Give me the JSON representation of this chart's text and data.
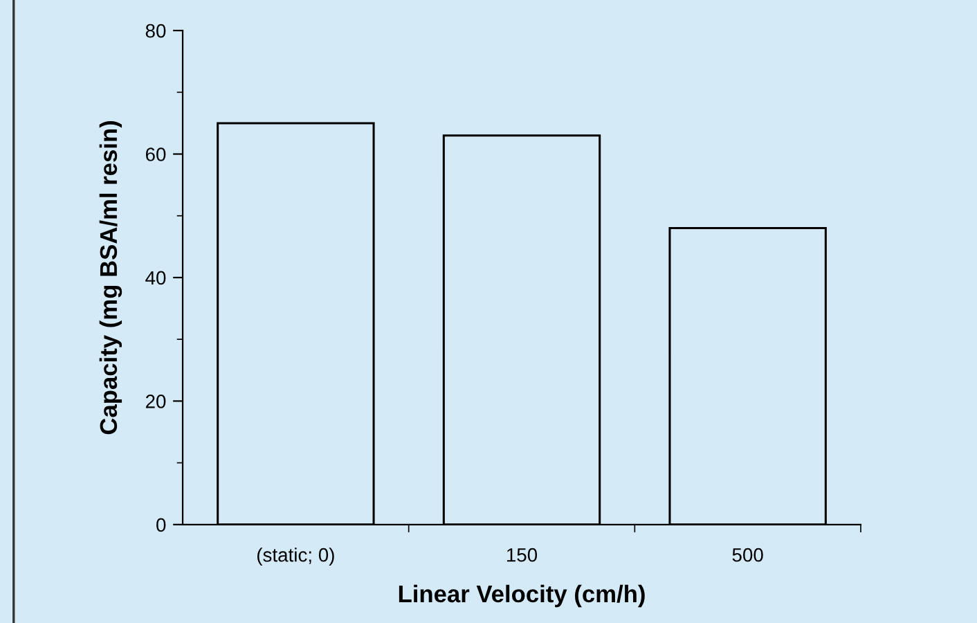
{
  "chart_data": {
    "type": "bar",
    "xlabel": "Linear Velocity (cm/h)",
    "ylabel": "Capacity (mg BSA/ml resin)",
    "categories": [
      "(static; 0)",
      "150",
      "500"
    ],
    "values": [
      65,
      63,
      48
    ],
    "color": "#d4eaf7",
    "ylim": [
      0,
      80
    ],
    "yticks": [
      0,
      20,
      40,
      60,
      80
    ],
    "grid": false
  }
}
